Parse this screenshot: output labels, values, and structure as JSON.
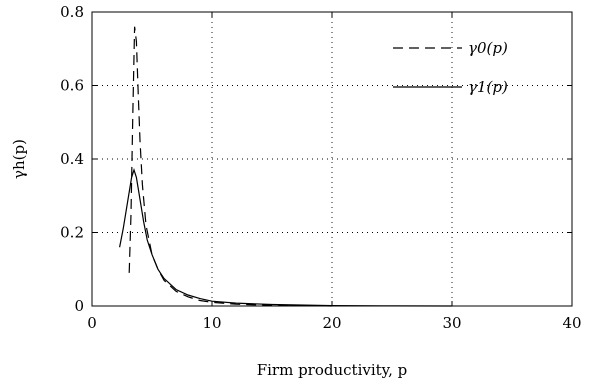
{
  "chart_data": {
    "type": "line",
    "title": "",
    "xlabel": "Firm productivity, p",
    "ylabel": "γh(p)",
    "xlim": [
      0,
      40
    ],
    "ylim": [
      0,
      0.8
    ],
    "xticks": [
      "0",
      "10",
      "20",
      "30",
      "40"
    ],
    "yticks": [
      "0",
      "0.2",
      "0.4",
      "0.6",
      "0.8"
    ],
    "grid": true,
    "legend_position": "top-right",
    "series": [
      {
        "name": "γ0(p)",
        "style": "dashed",
        "x": [
          3.1,
          3.25,
          3.4,
          3.55,
          3.7,
          3.85,
          4.0,
          4.2,
          4.5,
          5.0,
          5.5,
          6.0,
          7.0,
          8.0,
          9.0,
          10.0,
          12.0,
          15.0,
          20.0
        ],
        "y": [
          0.09,
          0.25,
          0.52,
          0.76,
          0.72,
          0.58,
          0.45,
          0.33,
          0.22,
          0.14,
          0.1,
          0.07,
          0.04,
          0.025,
          0.015,
          0.01,
          0.005,
          0.002,
          0.0
        ]
      },
      {
        "name": "γ1(p)",
        "style": "solid",
        "x": [
          2.3,
          2.6,
          3.0,
          3.3,
          3.5,
          3.7,
          4.0,
          4.3,
          4.6,
          5.0,
          5.5,
          6.0,
          7.0,
          8.0,
          9.0,
          10.0,
          12.0,
          15.0,
          20.0,
          25.0,
          30.0
        ],
        "y": [
          0.16,
          0.21,
          0.29,
          0.35,
          0.37,
          0.35,
          0.29,
          0.23,
          0.18,
          0.14,
          0.1,
          0.075,
          0.045,
          0.03,
          0.02,
          0.013,
          0.008,
          0.004,
          0.001,
          0.0003,
          0.0
        ]
      }
    ]
  }
}
